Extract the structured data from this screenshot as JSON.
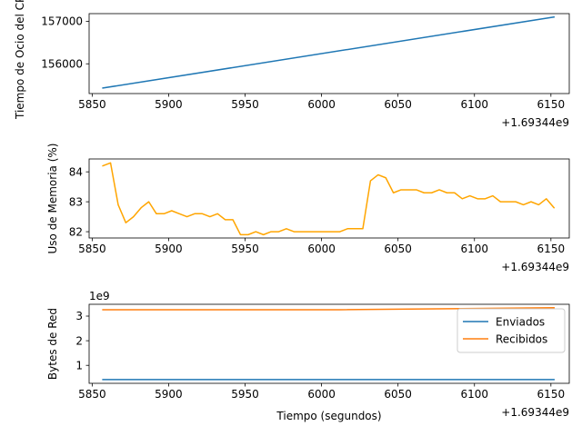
{
  "chart_data": [
    {
      "type": "line",
      "title": "",
      "xlabel": "",
      "ylabel": "Tiempo de Ocio del CPU",
      "x_offset_label": "+1.69344e9",
      "xlim": [
        5848,
        6162
      ],
      "ylim": [
        155300,
        157180
      ],
      "xticks": [
        5850,
        5900,
        5950,
        6000,
        6050,
        6100,
        6150
      ],
      "yticks": [
        156000,
        157000
      ],
      "series": [
        {
          "color": "#1f77b4",
          "x": [
            5857,
            6152
          ],
          "y": [
            155430,
            157100
          ]
        }
      ]
    },
    {
      "type": "line",
      "title": "",
      "xlabel": "",
      "ylabel": "Uso de Memoria (%)",
      "x_offset_label": "+1.69344e9",
      "xlim": [
        5848,
        6162
      ],
      "ylim": [
        81.79,
        84.43
      ],
      "xticks": [
        5850,
        5900,
        5950,
        6000,
        6050,
        6100,
        6150
      ],
      "yticks": [
        82,
        83,
        84
      ],
      "series": [
        {
          "color": "#ffa500",
          "x": [
            5857,
            5862,
            5867,
            5872,
            5877,
            5882,
            5887,
            5892,
            5897,
            5902,
            5907,
            5912,
            5917,
            5922,
            5927,
            5932,
            5937,
            5942,
            5947,
            5952,
            5957,
            5962,
            5967,
            5972,
            5977,
            5982,
            5987,
            5992,
            5997,
            6002,
            6007,
            6012,
            6017,
            6022,
            6027,
            6032,
            6037,
            6042,
            6047,
            6052,
            6057,
            6062,
            6067,
            6072,
            6077,
            6082,
            6087,
            6092,
            6097,
            6102,
            6107,
            6112,
            6117,
            6122,
            6127,
            6132,
            6137,
            6142,
            6147,
            6152
          ],
          "y": [
            84.2,
            84.3,
            82.9,
            82.3,
            82.5,
            82.8,
            83.0,
            82.6,
            82.6,
            82.7,
            82.6,
            82.5,
            82.6,
            82.6,
            82.5,
            82.6,
            82.4,
            82.4,
            81.9,
            81.9,
            82.0,
            81.9,
            82.0,
            82.0,
            82.1,
            82.0,
            82.0,
            82.0,
            82.0,
            82.0,
            82.0,
            82.0,
            82.1,
            82.1,
            82.1,
            83.7,
            83.9,
            83.8,
            83.3,
            83.4,
            83.4,
            83.4,
            83.3,
            83.3,
            83.4,
            83.3,
            83.3,
            83.1,
            83.2,
            83.1,
            83.1,
            83.2,
            83.0,
            83.0,
            83.0,
            82.9,
            83.0,
            82.9,
            83.1,
            82.8
          ]
        }
      ]
    },
    {
      "type": "line",
      "title": "",
      "xlabel": "Tiempo (segundos)",
      "ylabel": "Bytes de Red",
      "x_offset_label": "+1.69344e9",
      "y_scale_label": "1e9",
      "xlim": [
        5848,
        6162
      ],
      "ylim": [
        0.27,
        3.48
      ],
      "xticks": [
        5850,
        5900,
        5950,
        6000,
        6050,
        6100,
        6150
      ],
      "yticks": [
        1,
        2,
        3
      ],
      "legend": {
        "position": "upper-right"
      },
      "series": [
        {
          "name": "Enviados",
          "color": "#1f77b4",
          "x": [
            5857,
            6152
          ],
          "y": [
            0.42,
            0.42
          ]
        },
        {
          "name": "Recibidos",
          "color": "#ff7f0e",
          "x": [
            5857,
            6012,
            6152
          ],
          "y": [
            3.26,
            3.26,
            3.34
          ]
        }
      ]
    }
  ]
}
